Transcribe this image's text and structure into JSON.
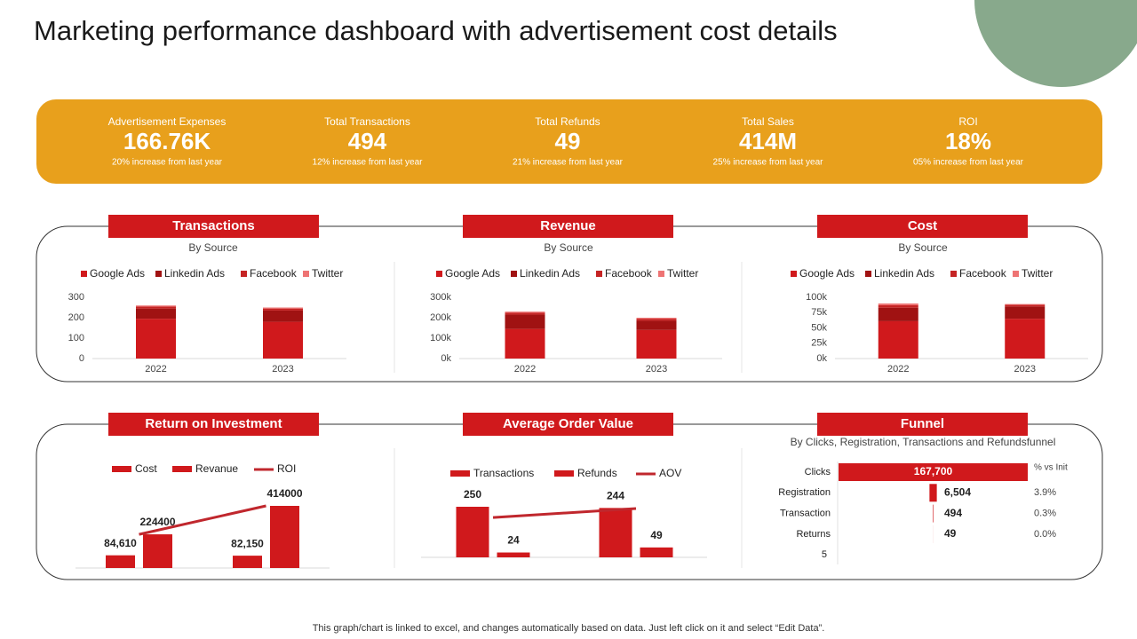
{
  "title": "Marketing performance dashboard with advertisement cost details",
  "kpis": [
    {
      "label": "Advertisement Expenses",
      "value": "166.76K",
      "change": "20% increase from last year"
    },
    {
      "label": "Total Transactions",
      "value": "494",
      "change": "12% increase from last year"
    },
    {
      "label": "Total Refunds",
      "value": "49",
      "change": "21% increase from last year"
    },
    {
      "label": "Total Sales",
      "value": "414M",
      "change": "25% increase from last year"
    },
    {
      "label": "ROI",
      "value": "18%",
      "change": "05% increase from last year"
    }
  ],
  "chart_data": [
    {
      "type": "stacked-bar",
      "title": "Transactions",
      "subtitle": "By Source",
      "categories": [
        "2022",
        "2023"
      ],
      "series": [
        {
          "name": "Google Ads",
          "color": "#d0191c",
          "values": [
            195,
            180
          ]
        },
        {
          "name": "Linkedin Ads",
          "color": "#a01212",
          "values": [
            50,
            55
          ]
        },
        {
          "name": "Facebook",
          "color": "#c52424",
          "values": [
            10,
            10
          ]
        },
        {
          "name": "Twitter",
          "color": "#ee7474",
          "values": [
            5,
            5
          ]
        }
      ],
      "ylim": [
        0,
        300
      ],
      "yticks": [
        0,
        100,
        200,
        300
      ],
      "legend": "top"
    },
    {
      "type": "stacked-bar",
      "title": "Revenue",
      "subtitle": "By Source",
      "categories": [
        "2022",
        "2023"
      ],
      "series": [
        {
          "name": "Google Ads",
          "color": "#d0191c",
          "values": [
            145000,
            140000
          ]
        },
        {
          "name": "Linkedin Ads",
          "color": "#a01212",
          "values": [
            70000,
            45000
          ]
        },
        {
          "name": "Facebook",
          "color": "#c52424",
          "values": [
            10000,
            10000
          ]
        },
        {
          "name": "Twitter",
          "color": "#ee7474",
          "values": [
            5000,
            5000
          ]
        }
      ],
      "ylim": [
        0,
        300000
      ],
      "yticks": [
        {
          "value": 0,
          "label": "0k"
        },
        {
          "value": 100000,
          "label": "100k"
        },
        {
          "value": 200000,
          "label": "200k"
        },
        {
          "value": 300000,
          "label": "300k"
        }
      ],
      "legend": "top"
    },
    {
      "type": "stacked-bar",
      "title": "Cost",
      "subtitle": "By Source",
      "categories": [
        "2022",
        "2023"
      ],
      "series": [
        {
          "name": "Google Ads",
          "color": "#d0191c",
          "values": [
            61000,
            65000
          ]
        },
        {
          "name": "Linkedin Ads",
          "color": "#a01212",
          "values": [
            22000,
            20000
          ]
        },
        {
          "name": "Facebook",
          "color": "#c52424",
          "values": [
            4000,
            3000
          ]
        },
        {
          "name": "Twitter",
          "color": "#ee7474",
          "values": [
            3000,
            1000
          ]
        }
      ],
      "ylim": [
        0,
        100000
      ],
      "yticks": [
        {
          "value": 0,
          "label": "0k"
        },
        {
          "value": 25000,
          "label": "25k"
        },
        {
          "value": 50000,
          "label": "50k"
        },
        {
          "value": 75000,
          "label": "75k"
        },
        {
          "value": 100000,
          "label": "100k"
        }
      ],
      "legend": "top"
    },
    {
      "type": "combo",
      "title": "Return on Investment",
      "categories": [
        null,
        null
      ],
      "series": [
        {
          "name": "Cost",
          "color": "#d0191c",
          "kind": "bar",
          "values": [
            84610,
            82150
          ],
          "value_labels": [
            "84,610",
            "82,150"
          ]
        },
        {
          "name": "Revanue",
          "color": "#d0191c",
          "kind": "bar",
          "values": [
            224400,
            414000
          ]
        },
        {
          "name": "ROI",
          "color": "#c0272d",
          "kind": "line",
          "values": [
            224000,
            414000
          ]
        }
      ],
      "legend": "top"
    },
    {
      "type": "combo",
      "title": "Average Order Value",
      "categories": [
        null,
        null
      ],
      "series": [
        {
          "name": "Transactions",
          "color": "#d0191c",
          "kind": "bar",
          "values": [
            250,
            244
          ]
        },
        {
          "name": "Refunds",
          "color": "#d0191c",
          "kind": "bar",
          "values": [
            24,
            49
          ]
        },
        {
          "name": "AOV",
          "color": "#c0272d",
          "kind": "line",
          "values": [
            197,
            241
          ]
        }
      ],
      "legend": "top"
    },
    {
      "type": "funnel",
      "title": "Funnel",
      "subtitle": "By Clicks, Registration, Transactions and Refundsfunnel",
      "categories": [
        "Clicks",
        "Registration",
        "Transaction",
        "Returns"
      ],
      "values": [
        167700,
        6504,
        494,
        49
      ],
      "value_labels": [
        "167,700",
        "6,504",
        "494",
        "49"
      ],
      "percent_header": "% vs Init",
      "percent_labels": [
        null,
        "3.9%",
        "0.3%",
        "0.0%"
      ],
      "axis_label": "5",
      "color": "#d0191c"
    }
  ],
  "footer": "This graph/chart is linked to excel,  and changes automatically based on data. Just left click on it and select “Edit Data”."
}
